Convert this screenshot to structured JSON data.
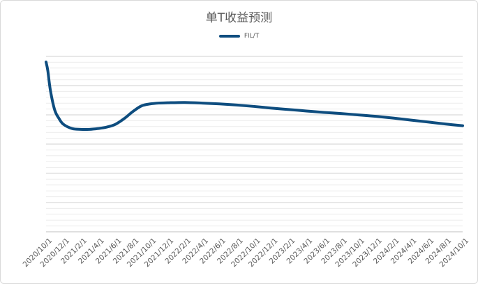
{
  "chart_data": {
    "type": "line",
    "title": "单T收益预测",
    "xlabel": "",
    "ylabel": "",
    "grid": true,
    "legend_position": "top",
    "categories": [
      "2020/10/1",
      "2020/12/1",
      "2021/2/1",
      "2021/4/1",
      "2021/6/1",
      "2021/8/1",
      "2021/10/1",
      "2021/12/1",
      "2022/2/1",
      "2022/4/1",
      "2022/6/1",
      "2022/8/1",
      "2022/10/1",
      "2022/12/1",
      "2023/2/1",
      "2023/4/1",
      "2023/6/1",
      "2023/8/1",
      "2023/10/1",
      "2023/12/1",
      "2024/2/1",
      "2024/4/1",
      "2024/6/1",
      "2024/8/1",
      "2024/10/1"
    ],
    "ylim": [
      0,
      0.62
    ],
    "series": [
      {
        "name": "FIL/T",
        "color": "#0e4d7f",
        "x": [
          0,
          0.1,
          0.25,
          0.5,
          0.75,
          1,
          1.5,
          2,
          2.5,
          3,
          3.5,
          4,
          4.5,
          5,
          5.5,
          6,
          6.5,
          7,
          8,
          9,
          10,
          11,
          12,
          13,
          14,
          15,
          16,
          17,
          18,
          19,
          20,
          21,
          22,
          23,
          24
        ],
        "values": [
          0.6,
          0.57,
          0.5,
          0.43,
          0.4,
          0.38,
          0.365,
          0.362,
          0.362,
          0.365,
          0.37,
          0.38,
          0.4,
          0.425,
          0.445,
          0.452,
          0.455,
          0.456,
          0.457,
          0.455,
          0.452,
          0.448,
          0.443,
          0.437,
          0.432,
          0.427,
          0.422,
          0.418,
          0.413,
          0.408,
          0.402,
          0.395,
          0.388,
          0.381,
          0.375
        ]
      }
    ]
  }
}
